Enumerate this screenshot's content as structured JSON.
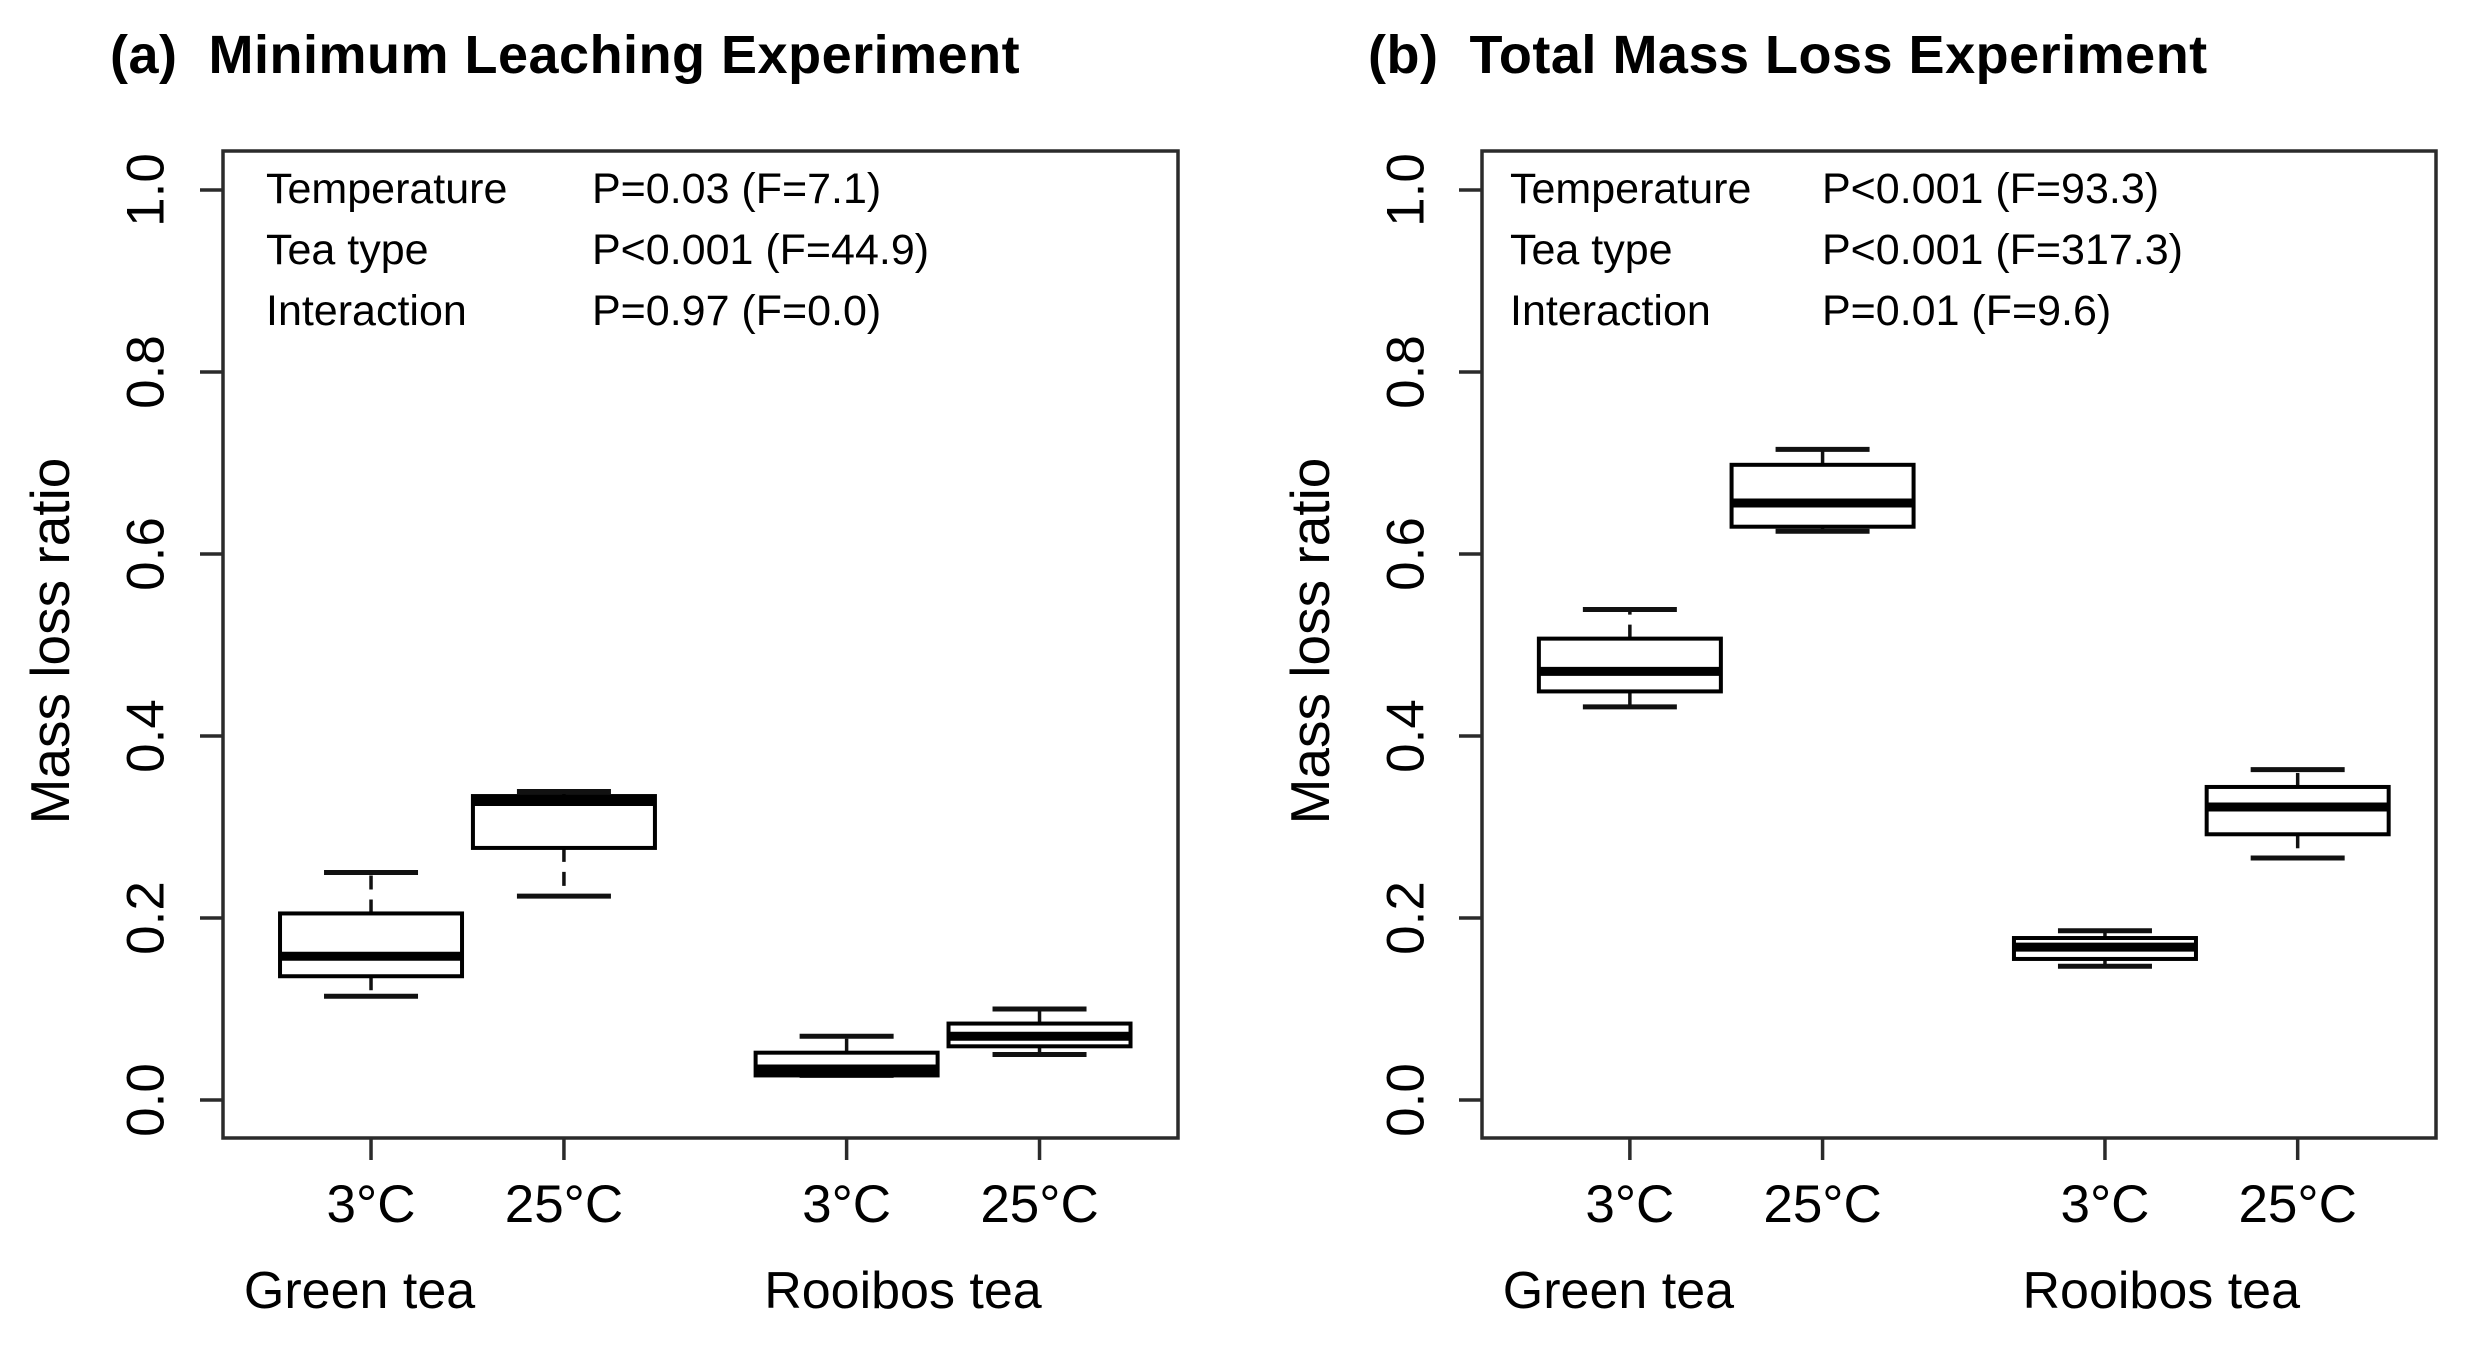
{
  "chart_data": [
    {
      "type": "boxplot",
      "panel": "a",
      "title": "(a)  Minimum Leaching Experiment",
      "ylabel": "Mass loss ratio",
      "ylim": [
        0.0,
        1.0
      ],
      "yticks": [
        0.0,
        0.2,
        0.4,
        0.6,
        0.8,
        1.0
      ],
      "ytick_labels": [
        "0.0",
        "0.2",
        "0.4",
        "0.6",
        "0.8",
        "1.0"
      ],
      "x_categories": [
        "3°C",
        "25°C",
        "3°C",
        "25°C"
      ],
      "group_labels": [
        "Green tea",
        "Rooibos tea"
      ],
      "anova": [
        {
          "factor": "Temperature",
          "result": "P=0.03 (F=7.1)"
        },
        {
          "factor": "Tea type",
          "result": "P<0.001 (F=44.9)"
        },
        {
          "factor": "Interaction",
          "result": "P=0.97 (F=0.0)"
        }
      ],
      "boxes": [
        {
          "group": "Green tea",
          "temperature": "3°C",
          "whisker_low": 0.114,
          "q1": 0.136,
          "median": 0.158,
          "q3": 0.205,
          "whisker_high": 0.25
        },
        {
          "group": "Green tea",
          "temperature": "25°C",
          "whisker_low": 0.224,
          "q1": 0.277,
          "median": 0.328,
          "q3": 0.334,
          "whisker_high": 0.339
        },
        {
          "group": "Rooibos tea",
          "temperature": "3°C",
          "whisker_low": 0.027,
          "q1": 0.027,
          "median": 0.034,
          "q3": 0.052,
          "whisker_high": 0.07
        },
        {
          "group": "Rooibos tea",
          "temperature": "25°C",
          "whisker_low": 0.05,
          "q1": 0.059,
          "median": 0.07,
          "q3": 0.084,
          "whisker_high": 0.1
        }
      ]
    },
    {
      "type": "boxplot",
      "panel": "b",
      "title": "(b)  Total Mass Loss Experiment",
      "ylabel": "Mass loss ratio",
      "ylim": [
        0.0,
        1.0
      ],
      "yticks": [
        0.0,
        0.2,
        0.4,
        0.6,
        0.8,
        1.0
      ],
      "ytick_labels": [
        "0.0",
        "0.2",
        "0.4",
        "0.6",
        "0.8",
        "1.0"
      ],
      "x_categories": [
        "3°C",
        "25°C",
        "3°C",
        "25°C"
      ],
      "group_labels": [
        "Green tea",
        "Rooibos tea"
      ],
      "anova": [
        {
          "factor": "Temperature",
          "result": "P<0.001 (F=93.3)"
        },
        {
          "factor": "Tea type",
          "result": "P<0.001 (F=317.3)"
        },
        {
          "factor": "Interaction",
          "result": "P=0.01 (F=9.6)"
        }
      ],
      "boxes": [
        {
          "group": "Green tea",
          "temperature": "3°C",
          "whisker_low": 0.432,
          "q1": 0.449,
          "median": 0.471,
          "q3": 0.507,
          "whisker_high": 0.539
        },
        {
          "group": "Green tea",
          "temperature": "25°C",
          "whisker_low": 0.625,
          "q1": 0.63,
          "median": 0.656,
          "q3": 0.698,
          "whisker_high": 0.715
        },
        {
          "group": "Rooibos tea",
          "temperature": "3°C",
          "whisker_low": 0.147,
          "q1": 0.155,
          "median": 0.168,
          "q3": 0.178,
          "whisker_high": 0.186
        },
        {
          "group": "Rooibos tea",
          "temperature": "25°C",
          "whisker_low": 0.266,
          "q1": 0.292,
          "median": 0.322,
          "q3": 0.344,
          "whisker_high": 0.363
        }
      ]
    }
  ]
}
